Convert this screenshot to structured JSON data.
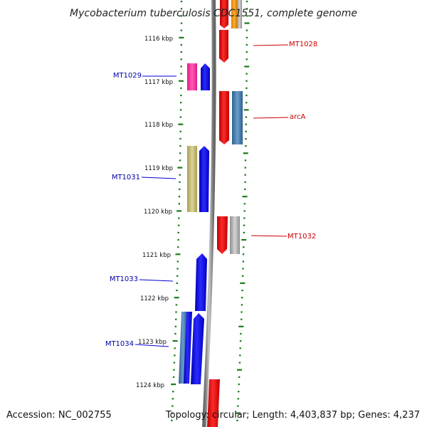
{
  "title": "Mycobacterium tuberculosis CDC1551, complete genome",
  "footer": {
    "accession": "Accession: NC_002755",
    "summary": "Topology: circular; Length: 4,403,837 bp; Genes: 4,237"
  },
  "scale_labels": [
    "1116 kbp",
    "1117 kbp",
    "1118 kbp",
    "1119 kbp",
    "1120 kbp",
    "1121 kbp",
    "1122 kbp",
    "1123 kbp",
    "1124 kbp"
  ],
  "gene_labels": [
    {
      "name": "MT1028",
      "strand": "forward",
      "color": "#cc0000"
    },
    {
      "name": "MT1029",
      "strand": "reverse",
      "color": "#0000aa"
    },
    {
      "name": "arcA",
      "strand": "forward",
      "color": "#cc0000"
    },
    {
      "name": "MT1031",
      "strand": "reverse",
      "color": "#0000aa"
    },
    {
      "name": "MT1032",
      "strand": "forward",
      "color": "#cc0000"
    },
    {
      "name": "MT1033",
      "strand": "reverse",
      "color": "#0000aa"
    },
    {
      "name": "MT1034",
      "strand": "reverse",
      "color": "#0000aa"
    }
  ],
  "colors": {
    "forward_gene": "#ff0000",
    "reverse_gene": "#0000ff",
    "backbone": "#8a8a8a",
    "tick": "#1a7a1a",
    "cog_pink": "#ff3ca0",
    "cog_steelblue": "#4a7fb0",
    "cog_khaki": "#c8bf78",
    "cog_gray": "#b0b0b0",
    "cog_orange": "#ff9a00"
  }
}
